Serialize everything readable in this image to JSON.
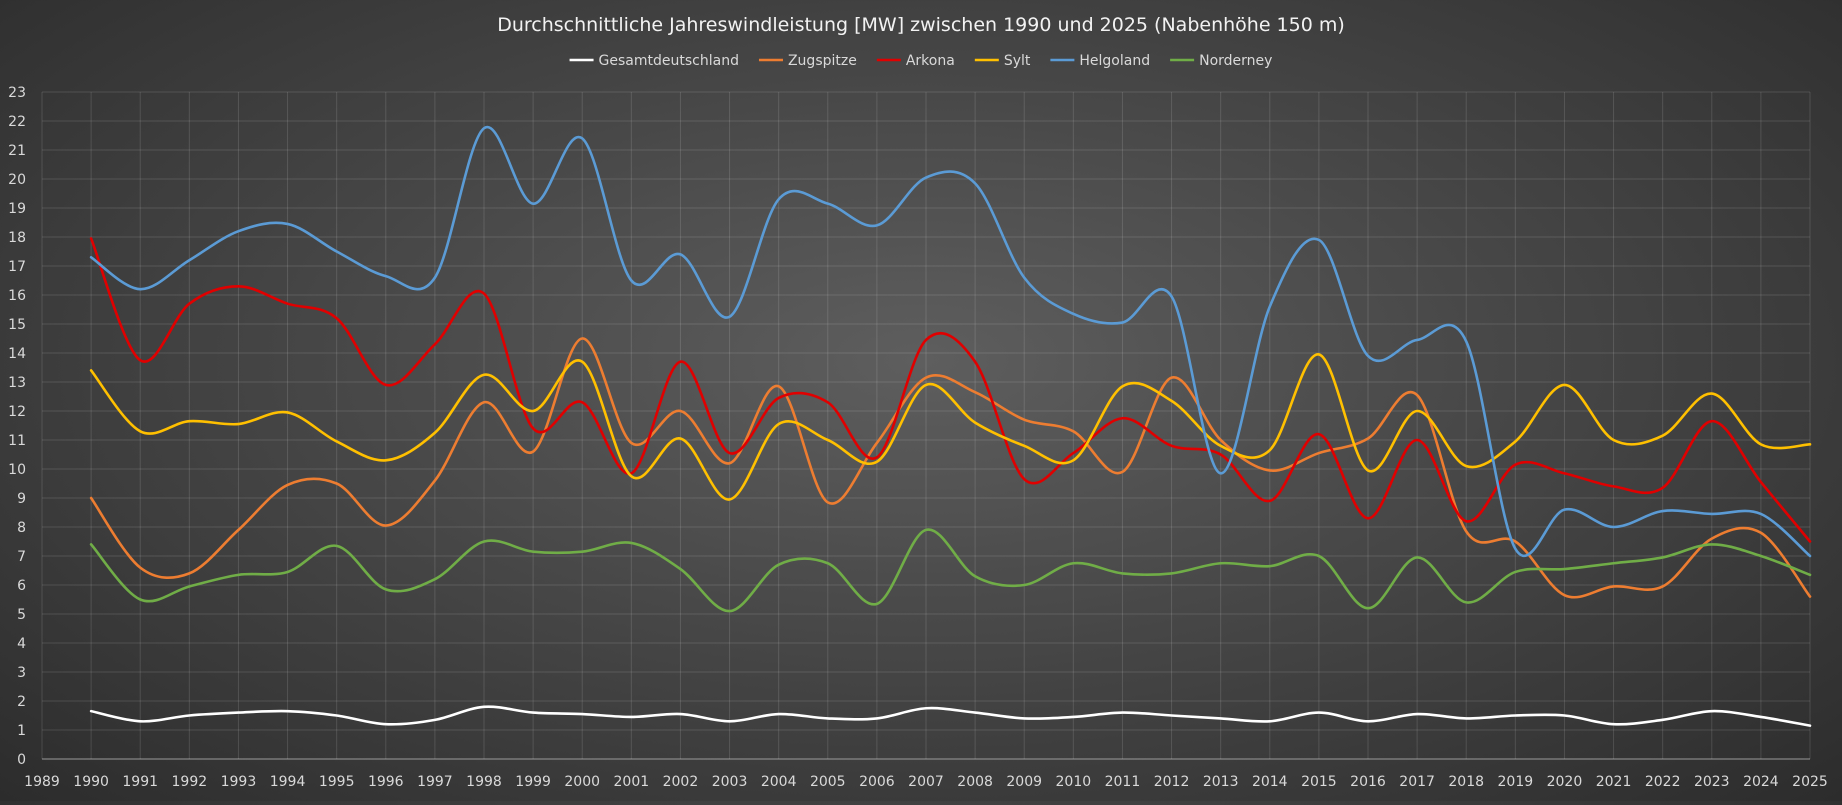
{
  "chart_data": {
    "type": "line",
    "title": "Durchschnittliche Jahreswindleistung [MW] zwischen 1990 und 2025 (Nabenhöhe 150 m)",
    "xlabel": "",
    "ylabel": "",
    "x": [
      1990,
      1991,
      1992,
      1993,
      1994,
      1995,
      1996,
      1997,
      1998,
      1999,
      2000,
      2001,
      2002,
      2003,
      2004,
      2005,
      2006,
      2007,
      2008,
      2009,
      2010,
      2011,
      2012,
      2013,
      2014,
      2015,
      2016,
      2017,
      2018,
      2019,
      2020,
      2021,
      2022,
      2023,
      2024,
      2025
    ],
    "xlim": [
      1989,
      2025
    ],
    "ylim": [
      0,
      23
    ],
    "x_ticks": [
      1989,
      1990,
      1991,
      1992,
      1993,
      1994,
      1995,
      1996,
      1997,
      1998,
      1999,
      2000,
      2001,
      2002,
      2003,
      2004,
      2005,
      2006,
      2007,
      2008,
      2009,
      2010,
      2011,
      2012,
      2013,
      2014,
      2015,
      2016,
      2017,
      2018,
      2019,
      2020,
      2021,
      2022,
      2023,
      2024,
      2025
    ],
    "y_ticks": [
      0,
      1,
      2,
      3,
      4,
      5,
      6,
      7,
      8,
      9,
      10,
      11,
      12,
      13,
      14,
      15,
      16,
      17,
      18,
      19,
      20,
      21,
      22,
      23
    ],
    "grid": true,
    "legend_position": "top-center",
    "smooth": true,
    "series": [
      {
        "name": "Gesamtdeutschland",
        "color": "#ffffff",
        "values": [
          1.65,
          1.3,
          1.5,
          1.6,
          1.65,
          1.5,
          1.2,
          1.35,
          1.8,
          1.6,
          1.55,
          1.45,
          1.55,
          1.3,
          1.55,
          1.4,
          1.4,
          1.75,
          1.6,
          1.4,
          1.45,
          1.6,
          1.5,
          1.4,
          1.3,
          1.6,
          1.3,
          1.55,
          1.4,
          1.5,
          1.5,
          1.2,
          1.35,
          1.65,
          1.45,
          1.15
        ]
      },
      {
        "name": "Zugspitze",
        "color": "#ed7d31",
        "values": [
          9.0,
          6.6,
          6.4,
          7.9,
          9.45,
          9.5,
          8.05,
          9.6,
          12.3,
          10.6,
          14.5,
          10.9,
          12.0,
          10.2,
          12.85,
          8.85,
          10.9,
          13.15,
          12.65,
          11.7,
          11.3,
          9.9,
          13.15,
          11.0,
          9.95,
          10.55,
          11.05,
          12.55,
          7.85,
          7.5,
          5.65,
          5.95,
          5.95,
          7.6,
          7.8,
          5.6
        ]
      },
      {
        "name": "Arkona",
        "color": "#e00000",
        "values": [
          17.95,
          13.75,
          15.7,
          16.3,
          15.7,
          15.2,
          12.9,
          14.3,
          16.05,
          11.4,
          12.3,
          9.85,
          13.7,
          10.55,
          12.45,
          12.3,
          10.4,
          14.45,
          13.7,
          9.65,
          10.55,
          11.75,
          10.8,
          10.5,
          8.9,
          11.2,
          8.3,
          11.0,
          8.2,
          10.15,
          9.85,
          9.4,
          9.35,
          11.65,
          9.55,
          7.5
        ]
      },
      {
        "name": "Sylt",
        "color": "#ffc000",
        "values": [
          13.4,
          11.3,
          11.65,
          11.55,
          11.95,
          10.95,
          10.3,
          11.25,
          13.25,
          12.0,
          13.7,
          9.75,
          11.05,
          8.95,
          11.55,
          11.0,
          10.25,
          12.9,
          11.6,
          10.8,
          10.3,
          12.85,
          12.35,
          10.8,
          10.65,
          13.95,
          9.95,
          12.0,
          10.1,
          10.95,
          12.9,
          11.0,
          11.15,
          12.6,
          10.85,
          10.85
        ]
      },
      {
        "name": "Helgoland",
        "color": "#5b9bd5",
        "values": [
          17.3,
          16.2,
          17.2,
          18.2,
          18.45,
          17.5,
          16.65,
          16.6,
          21.75,
          19.15,
          21.4,
          16.5,
          17.4,
          15.25,
          19.3,
          19.15,
          18.4,
          20.05,
          19.85,
          16.6,
          15.35,
          15.05,
          15.95,
          9.85,
          15.6,
          17.9,
          13.9,
          14.45,
          14.4,
          7.25,
          8.6,
          8.0,
          8.55,
          8.45,
          8.45,
          7.0
        ]
      },
      {
        "name": "Norderney",
        "color": "#70ad47",
        "values": [
          7.4,
          5.5,
          5.95,
          6.35,
          6.45,
          7.35,
          5.85,
          6.2,
          7.5,
          7.15,
          7.15,
          7.45,
          6.55,
          5.1,
          6.7,
          6.75,
          5.35,
          7.9,
          6.3,
          6.0,
          6.75,
          6.4,
          6.4,
          6.75,
          6.65,
          7.0,
          5.2,
          6.95,
          5.4,
          6.45,
          6.55,
          6.75,
          6.95,
          7.4,
          7.0,
          6.35
        ]
      }
    ]
  }
}
